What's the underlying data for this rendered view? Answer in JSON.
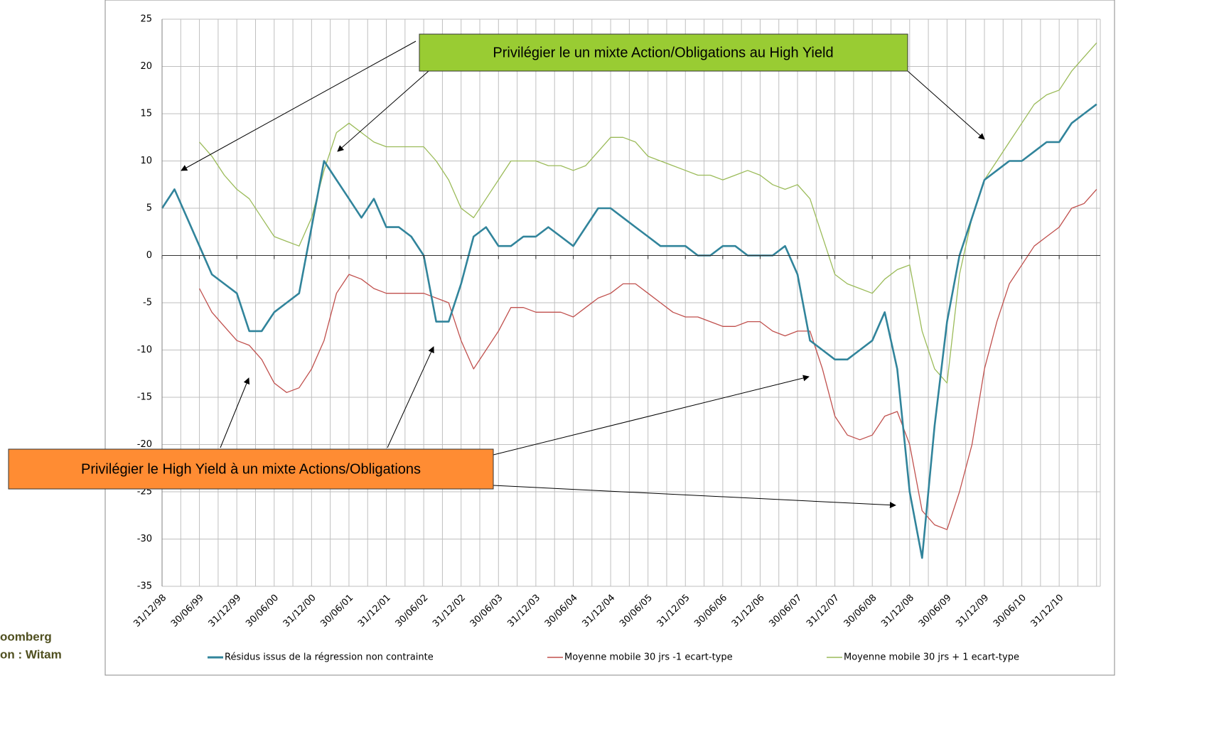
{
  "chart_data": {
    "type": "line",
    "categories": [
      "31/12/98",
      null,
      null,
      "30/06/99",
      null,
      null,
      "31/12/99",
      null,
      null,
      "30/06/00",
      null,
      null,
      "31/12/00",
      null,
      null,
      "30/06/01",
      null,
      null,
      "31/12/01",
      null,
      null,
      "30/06/02",
      null,
      null,
      "31/12/02",
      null,
      null,
      "30/06/03",
      null,
      null,
      "31/12/03",
      null,
      null,
      "30/06/04",
      null,
      null,
      "31/12/04",
      null,
      null,
      "30/06/05",
      null,
      null,
      "31/12/05",
      null,
      null,
      "30/06/06",
      null,
      null,
      "31/12/06",
      null,
      null,
      "30/06/07",
      null,
      null,
      "31/12/07",
      null,
      null,
      "30/06/08",
      null,
      null,
      "31/12/08",
      null,
      null,
      "30/06/09",
      null,
      null,
      "31/12/09",
      null,
      null,
      "30/06/10",
      null,
      null,
      "31/12/10",
      null,
      null,
      null
    ],
    "series": [
      {
        "name": "Résidus issus de la régression non contrainte",
        "color": "#31849b",
        "values": [
          5,
          7,
          4,
          1,
          -2,
          -3,
          -4,
          -8,
          -8,
          -6,
          -5,
          -4,
          3,
          10,
          8,
          6,
          4,
          6,
          3,
          3,
          2,
          0,
          -7,
          -7,
          -3,
          2,
          3,
          1,
          1,
          2,
          2,
          3,
          2,
          1,
          3,
          5,
          5,
          4,
          3,
          2,
          1,
          1,
          1,
          0,
          0,
          1,
          1,
          0,
          0,
          0,
          1,
          -2,
          -9,
          -10,
          -11,
          -11,
          -10,
          -9,
          -6,
          -12,
          -25,
          -32,
          -18,
          -7,
          0,
          4,
          8,
          9,
          10,
          10,
          11,
          12,
          12,
          14,
          15,
          16
        ]
      },
      {
        "name": "Moyenne mobile 30 jrs -1 ecart-type",
        "color": "#c0504d",
        "values": [
          null,
          null,
          null,
          -3.5,
          -6,
          -7.5,
          -9,
          -9.5,
          -11,
          -13.5,
          -14.5,
          -14,
          -12,
          -9,
          -4,
          -2,
          -2.5,
          -3.5,
          -4,
          -4,
          -4,
          -4,
          -4.5,
          -5,
          -9,
          -12,
          -10,
          -8,
          -5.5,
          -5.5,
          -6,
          -6,
          -6,
          -6.5,
          -5.5,
          -4.5,
          -4,
          -3,
          -3,
          -4,
          -5,
          -6,
          -6.5,
          -6.5,
          -7,
          -7.5,
          -7.5,
          -7,
          -7,
          -8,
          -8.5,
          -8,
          -8,
          -12,
          -17,
          -19,
          -19.5,
          -19,
          -17,
          -16.5,
          -20,
          -27,
          -28.5,
          -29,
          -25,
          -20,
          -12,
          -7,
          -3,
          -1,
          1,
          2,
          3,
          5,
          5.5,
          7
        ]
      },
      {
        "name": "Moyenne mobile 30 jrs + 1 ecart-type",
        "color": "#9bbb59",
        "values": [
          null,
          null,
          null,
          12,
          10.5,
          8.5,
          7,
          6,
          4,
          2,
          1.5,
          1,
          4,
          9,
          13,
          14,
          13,
          12,
          11.5,
          11.5,
          11.5,
          11.5,
          10,
          8,
          5,
          4,
          6,
          8,
          10,
          10,
          10,
          9.5,
          9.5,
          9,
          9.5,
          11,
          12.5,
          12.5,
          12,
          10.5,
          10,
          9.5,
          9,
          8.5,
          8.5,
          8,
          8.5,
          9,
          8.5,
          7.5,
          7,
          7.5,
          6,
          2,
          -2,
          -3,
          -3.5,
          -4,
          -2.5,
          -1.5,
          -1,
          -8,
          -12,
          -13.5,
          -2,
          4,
          8,
          10,
          12,
          14,
          16,
          17,
          17.5,
          19.5,
          21,
          22.5
        ]
      }
    ],
    "ylim": [
      -35,
      25
    ],
    "yticks": [
      25,
      20,
      15,
      10,
      5,
      0,
      -5,
      -10,
      -15,
      -20,
      -25,
      -30,
      -35
    ],
    "grid": true,
    "legend": "bottom",
    "annotations": [
      {
        "text": "Privilégier le un mixte Action/Obligations au High Yield",
        "color": "#99cc33"
      },
      {
        "text": "Privilégier le High Yield à un mixte Actions/Obligations",
        "color": "#ff8c33"
      }
    ],
    "source_note": [
      "oomberg",
      "on : Witam"
    ]
  }
}
